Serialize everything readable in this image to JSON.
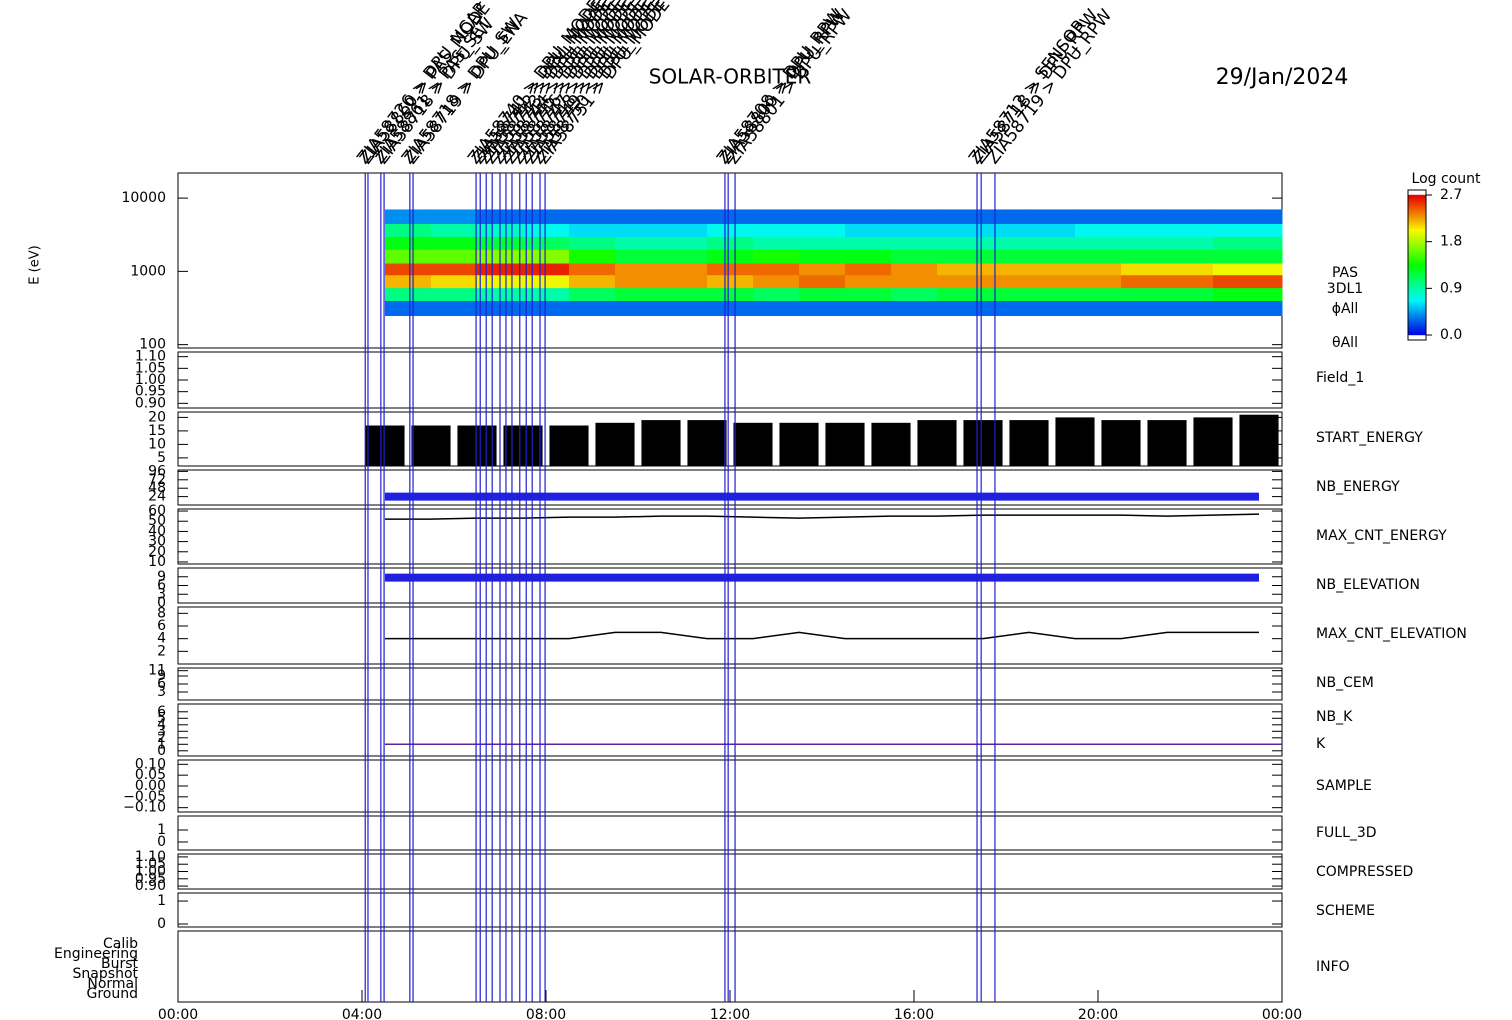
{
  "title": "SOLAR-ORBITER",
  "date": "29/Jan/2024",
  "time_axis": {
    "xlim": [
      0,
      24
    ],
    "xticks": [
      {
        "value": 0,
        "label": "00:00"
      },
      {
        "value": 4,
        "label": "04:00"
      },
      {
        "value": 8,
        "label": "08:00"
      },
      {
        "value": 12,
        "label": "12:00"
      },
      {
        "value": 16,
        "label": "16:00"
      },
      {
        "value": 20,
        "label": "20:00"
      },
      {
        "value": 24,
        "label": "00:00"
      }
    ]
  },
  "events": [
    {
      "time": 4.07,
      "label": "ZIA58726 > DPU_NCAP"
    },
    {
      "time": 4.13,
      "label": "ZIA58860 > PAS_MODE"
    },
    {
      "time": 4.41,
      "label": "ZIA58861 > PAS_SET"
    },
    {
      "time": 4.48,
      "label": "ZIA58718 > DPU_SW"
    },
    {
      "time": 5.04,
      "label": "ZIA58718 > DPU_SW"
    },
    {
      "time": 5.11,
      "label": "ZIA58719 > DPU_ENA"
    },
    {
      "time": 6.48,
      "label": "ZIA58740 > DPU_MODE"
    },
    {
      "time": 6.57,
      "label": "ZIA58741 > DPU_MODE"
    },
    {
      "time": 6.7,
      "label": "ZIA58742 > DPU_MODE"
    },
    {
      "time": 6.83,
      "label": "ZIA58743 > DPU_MODE"
    },
    {
      "time": 7.0,
      "label": "ZIA58744 > DPU_MODE"
    },
    {
      "time": 7.13,
      "label": "ZIA58745 > DPU_MODE"
    },
    {
      "time": 7.26,
      "label": "ZIA58746 > DPU_MODE"
    },
    {
      "time": 7.43,
      "label": "ZIA58747 > DPU_MODE"
    },
    {
      "time": 7.57,
      "label": "ZIA58748 > DPU_MODE"
    },
    {
      "time": 7.7,
      "label": "ZIA58749 > DPU_MODE"
    },
    {
      "time": 7.87,
      "label": "ZIA58750 > DPU_MODE"
    },
    {
      "time": 7.98,
      "label": "ZIA58751 > DPU_MODE"
    },
    {
      "time": 11.89,
      "label": "ZIA58708 > DPU_RPW"
    },
    {
      "time": 11.96,
      "label": "ZIA58800 > DPU_RPW"
    },
    {
      "time": 12.11,
      "label": "ZIA58801 > DPU_RPW"
    },
    {
      "time": 17.37,
      "label": "ZIA58712 > SENSOR"
    },
    {
      "time": 17.46,
      "label": "ZIA58718 > DPU_RPW"
    },
    {
      "time": 17.76,
      "label": "ZIA58719 > DPU_RPW"
    }
  ],
  "colorbar": {
    "label": "Log count",
    "lim": [
      0,
      2.7
    ],
    "ticks": [
      {
        "value": 2.7,
        "label": "2.7"
      },
      {
        "value": 1.8,
        "label": "1.8"
      },
      {
        "value": 0.9,
        "label": "0.9"
      },
      {
        "value": 0,
        "label": "0.0"
      }
    ]
  },
  "chart_data": [
    {
      "type": "heatmap",
      "y_label": "E (eV)",
      "side_labels": [
        "PAS",
        "3DL1",
        "ϕAll",
        "θAll"
      ],
      "log_y": true,
      "ylim": [
        90,
        22000
      ],
      "yticks": [
        {
          "value": 10000,
          "label": "10000"
        },
        {
          "value": 1000,
          "label": "1000"
        },
        {
          "value": 100,
          "label": "100"
        }
      ],
      "x_edges": [
        4.5,
        5.5,
        6.5,
        7.5,
        8.5,
        9.5,
        10.5,
        11.5,
        12.5,
        13.5,
        14.5,
        15.5,
        16.5,
        17.5,
        18.5,
        19.5,
        20.5,
        21.5,
        22.5,
        23.5,
        24
      ],
      "y_edges": [
        250,
        400,
        600,
        900,
        1300,
        2000,
        3000,
        4500,
        7000
      ],
      "z": [
        [
          0.3,
          0.3,
          0.3,
          0.3,
          0.3,
          0.3,
          0.3,
          0.3,
          0.3,
          0.3,
          0.3,
          0.3,
          0.3,
          0.3,
          0.3,
          0.3,
          0.3,
          0.3,
          0.3,
          0.3
        ],
        [
          1.0,
          1.0,
          0.9,
          0.9,
          1.1,
          1.2,
          1.2,
          1.2,
          1.1,
          1.2,
          1.2,
          1.1,
          1.2,
          1.2,
          1.2,
          1.2,
          1.2,
          1.2,
          1.3,
          1.3
        ],
        [
          2.2,
          2.1,
          2.0,
          2.0,
          2.2,
          2.3,
          2.3,
          2.2,
          2.3,
          2.4,
          2.3,
          2.3,
          2.3,
          2.3,
          2.3,
          2.3,
          2.4,
          2.4,
          2.5,
          2.5
        ],
        [
          2.5,
          2.5,
          2.6,
          2.6,
          2.4,
          2.3,
          2.3,
          2.4,
          2.4,
          2.3,
          2.4,
          2.3,
          2.2,
          2.2,
          2.2,
          2.2,
          2.1,
          2.1,
          2.0,
          2.0
        ],
        [
          1.6,
          1.6,
          1.7,
          1.7,
          1.4,
          1.2,
          1.2,
          1.3,
          1.4,
          1.3,
          1.3,
          1.2,
          1.2,
          1.2,
          1.2,
          1.2,
          1.2,
          1.2,
          1.2,
          1.2
        ],
        [
          1.3,
          1.3,
          1.2,
          1.1,
          1.0,
          0.9,
          0.9,
          1.0,
          0.9,
          0.9,
          0.9,
          0.9,
          0.9,
          0.9,
          0.9,
          0.9,
          0.9,
          0.9,
          1.0,
          1.0
        ],
        [
          1.0,
          0.9,
          0.8,
          0.7,
          0.6,
          0.6,
          0.6,
          0.7,
          0.7,
          0.7,
          0.6,
          0.6,
          0.6,
          0.6,
          0.6,
          0.7,
          0.7,
          0.7,
          0.7,
          0.7
        ],
        [
          0.4,
          0.4,
          0.3,
          0.3,
          0.3,
          0.3,
          0.3,
          0.3,
          0.3,
          0.3,
          0.3,
          0.3,
          0.3,
          0.3,
          0.3,
          0.3,
          0.3,
          0.3,
          0.3,
          0.3
        ]
      ]
    },
    {
      "type": "line",
      "ylim": [
        0.88,
        1.12
      ],
      "yticks": [
        {
          "value": 1.1,
          "label": "1.10"
        },
        {
          "value": 1.05,
          "label": "1.05"
        },
        {
          "value": 1,
          "label": "1.00"
        },
        {
          "value": 0.95,
          "label": "0.95"
        },
        {
          "value": 0.9,
          "label": "0.90"
        }
      ],
      "series": [
        {
          "name": "Field_1",
          "color": "#2020c0"
        }
      ]
    },
    {
      "type": "bar",
      "ylim": [
        2,
        22
      ],
      "yticks": [
        20,
        15,
        10,
        5
      ],
      "x": [
        4.5,
        5.5,
        6.5,
        7.5,
        8.5,
        9.5,
        10.5,
        11.5,
        12.5,
        13.5,
        14.5,
        15.5,
        16.5,
        17.5,
        18.5,
        19.5,
        20.5,
        21.5,
        22.5,
        23.5
      ],
      "series": [
        {
          "name": "START_ENERGY",
          "color": "#000000",
          "values": [
            17,
            17,
            17,
            17,
            17,
            18,
            19,
            19,
            18,
            18,
            18,
            18,
            19,
            19,
            19,
            20,
            19,
            19,
            20,
            21
          ]
        }
      ]
    },
    {
      "type": "line",
      "ylim": [
        0,
        100
      ],
      "yticks": [
        24,
        48,
        72,
        96
      ],
      "x": [
        4.5,
        5.5,
        6.5,
        7.5,
        8.5,
        9.5,
        10.5,
        11.5,
        12.5,
        13.5,
        14.5,
        15.5,
        16.5,
        17.5,
        18.5,
        19.5,
        20.5,
        21.5,
        22.5,
        23.5
      ],
      "series": [
        {
          "name": "NB_ENERGY",
          "color": "#2020e0",
          "values": [
            24,
            24,
            24,
            24,
            24,
            24,
            24,
            24,
            24,
            24,
            24,
            24,
            24,
            24,
            24,
            24,
            24,
            24,
            24,
            24
          ]
        }
      ]
    },
    {
      "type": "line",
      "ylim": [
        8,
        62
      ],
      "yticks": [
        60,
        50,
        40,
        30,
        20,
        10
      ],
      "x": [
        4.5,
        5.5,
        6.5,
        7.5,
        8.5,
        9.5,
        10.5,
        11.5,
        12.5,
        13.5,
        14.5,
        15.5,
        16.5,
        17.5,
        18.5,
        19.5,
        20.5,
        21.5,
        22.5,
        23.5
      ],
      "series": [
        {
          "name": "MAX_CNT_ENERGY",
          "color": "#000000",
          "values": [
            52,
            52,
            53,
            53,
            54,
            54,
            55,
            55,
            54,
            53,
            54,
            55,
            55,
            56,
            56,
            56,
            56,
            55,
            56,
            57
          ]
        }
      ]
    },
    {
      "type": "line",
      "ylim": [
        0,
        12
      ],
      "yticks": [
        9,
        6,
        3,
        0
      ],
      "x": [
        4.5,
        5.5,
        6.5,
        7.5,
        8.5,
        9.5,
        10.5,
        11.5,
        12.5,
        13.5,
        14.5,
        15.5,
        16.5,
        17.5,
        18.5,
        19.5,
        20.5,
        21.5,
        22.5,
        23.5
      ],
      "series": [
        {
          "name": "NB_ELEVATION",
          "color": "#2020e0",
          "values": [
            8.7,
            8.7,
            8.7,
            8.7,
            8.7,
            8.7,
            8.7,
            8.7,
            8.7,
            8.7,
            8.7,
            8.7,
            8.7,
            8.7,
            8.7,
            8.7,
            8.7,
            8.7,
            8.7,
            8.7
          ]
        }
      ]
    },
    {
      "type": "line",
      "ylim": [
        0,
        9
      ],
      "yticks": [
        8,
        6,
        4,
        2
      ],
      "x": [
        4.5,
        5.5,
        6.5,
        7.5,
        8.5,
        9.5,
        10.5,
        11.5,
        12.5,
        13.5,
        14.5,
        15.5,
        16.5,
        17.5,
        18.5,
        19.5,
        20.5,
        21.5,
        22.5,
        23.5
      ],
      "series": [
        {
          "name": "MAX_CNT_ELEVATION",
          "color": "#000000",
          "values": [
            4,
            4,
            4,
            4,
            4,
            5,
            5,
            4,
            4,
            5,
            4,
            4,
            4,
            4,
            5,
            4,
            4,
            5,
            5,
            5
          ]
        }
      ]
    },
    {
      "type": "line",
      "ylim": [
        0,
        12
      ],
      "yticks": [
        11,
        9,
        6,
        3
      ],
      "series": [
        {
          "name": "NB_CEM",
          "color": "#2020c0"
        }
      ]
    },
    {
      "type": "line",
      "ylim": [
        -0.8,
        7.2
      ],
      "yticks": [
        6,
        5,
        4,
        3,
        2,
        1,
        0
      ],
      "x": [
        4.5,
        24
      ],
      "series": [
        {
          "name": "NB_K",
          "color": "#d02020",
          "values": [
            1,
            1
          ]
        },
        {
          "name": "K",
          "color": "#6020a0",
          "values": [
            1,
            1
          ]
        }
      ]
    },
    {
      "type": "line",
      "ylim": [
        -0.12,
        0.12
      ],
      "yticks": [
        {
          "value": 0.1,
          "label": "0.10"
        },
        {
          "value": 0.05,
          "label": "0.05"
        },
        {
          "value": 0,
          "label": "0.00"
        },
        {
          "value": -0.05,
          "label": "−0.05"
        },
        {
          "value": -0.1,
          "label": "−0.10"
        }
      ],
      "series": [
        {
          "name": "SAMPLE",
          "color": "#2020c0"
        }
      ]
    },
    {
      "type": "line",
      "ylim": [
        -0.67,
        2.17
      ],
      "yticks": [
        1,
        0
      ],
      "series": [
        {
          "name": "FULL_3D",
          "color": "#2020c0"
        }
      ]
    },
    {
      "type": "line",
      "ylim": [
        0.88,
        1.12
      ],
      "yticks": [
        {
          "value": 1.1,
          "label": "1.10"
        },
        {
          "value": 1.05,
          "label": "1.05"
        },
        {
          "value": 1,
          "label": "1.00"
        },
        {
          "value": 0.95,
          "label": "0.95"
        },
        {
          "value": 0.9,
          "label": "0.90"
        }
      ],
      "series": [
        {
          "name": "COMPRESSED",
          "color": "#000000"
        }
      ]
    },
    {
      "type": "line",
      "ylim": [
        -0.13,
        1.35
      ],
      "yticks": [
        1,
        0
      ],
      "series": [
        {
          "name": "SCHEME",
          "color": "#000000"
        }
      ]
    },
    {
      "type": "category",
      "categories": [
        "Calib",
        "Engineering",
        "Burst",
        "Snapshot",
        "Normal",
        "Ground"
      ],
      "series": [
        {
          "name": "INFO",
          "color": "#000000"
        }
      ]
    }
  ]
}
